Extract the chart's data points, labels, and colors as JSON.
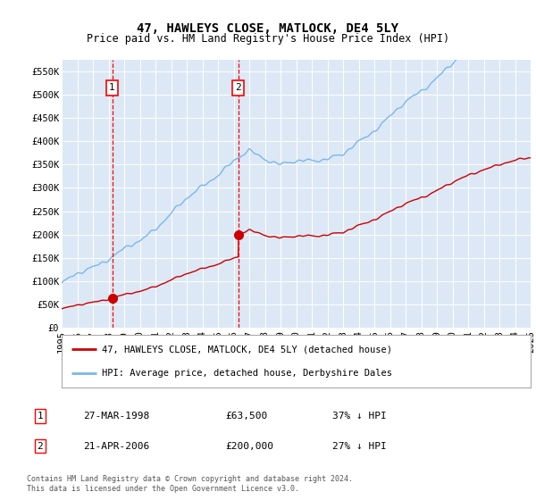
{
  "title": "47, HAWLEYS CLOSE, MATLOCK, DE4 5LY",
  "subtitle": "Price paid vs. HM Land Registry's House Price Index (HPI)",
  "ylim": [
    0,
    575000
  ],
  "yticks": [
    0,
    50000,
    100000,
    150000,
    200000,
    250000,
    300000,
    350000,
    400000,
    450000,
    500000,
    550000
  ],
  "ytick_labels": [
    "£0",
    "£50K",
    "£100K",
    "£150K",
    "£200K",
    "£250K",
    "£300K",
    "£350K",
    "£400K",
    "£450K",
    "£500K",
    "£550K"
  ],
  "x_start_year": 1995,
  "x_end_year": 2025,
  "hpi_color": "#7ab8e8",
  "price_color": "#cc0000",
  "purchase1_date": 1998.23,
  "purchase1_price": 63500,
  "purchase1_label": "1",
  "purchase2_date": 2006.31,
  "purchase2_price": 200000,
  "purchase2_label": "2",
  "legend_line1": "47, HAWLEYS CLOSE, MATLOCK, DE4 5LY (detached house)",
  "legend_line2": "HPI: Average price, detached house, Derbyshire Dales",
  "table_row1": [
    "1",
    "27-MAR-1998",
    "£63,500",
    "37% ↓ HPI"
  ],
  "table_row2": [
    "2",
    "21-APR-2006",
    "£200,000",
    "27% ↓ HPI"
  ],
  "footnote": "Contains HM Land Registry data © Crown copyright and database right 2024.\nThis data is licensed under the Open Government Licence v3.0.",
  "plot_bg_color": "#dce8f5",
  "grid_color": "#ffffff",
  "title_fontsize": 10,
  "subtitle_fontsize": 8.5,
  "tick_fontsize": 7.5
}
